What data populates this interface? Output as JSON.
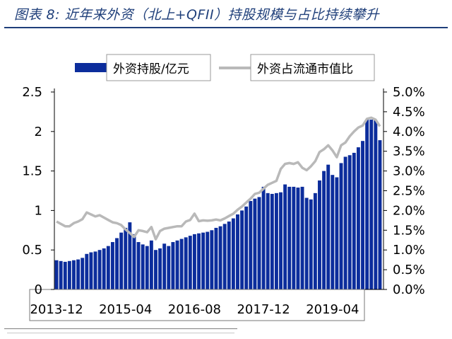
{
  "header": {
    "title": "图表 8:  近年来外资（北上+QFII）持股规模与占比持续攀升"
  },
  "chart_data": {
    "type": "bar+line",
    "legend": {
      "placement": "top",
      "bar_label": "外资持股/亿元",
      "line_label": "外资占流通市值比"
    },
    "colors": {
      "bar": "#0c2d9c",
      "line": "#b9b9b9",
      "title": "#1f3f7a"
    },
    "x_tick_labels": [
      "2013-12",
      "2015-04",
      "2016-08",
      "2017-12",
      "2019-04"
    ],
    "x_tick_indices": [
      0,
      16,
      32,
      48,
      64
    ],
    "y_left": {
      "ylim": [
        0,
        2.5
      ],
      "ticks": [
        "0",
        "0.5",
        "1",
        "1.5",
        "2",
        "2.5"
      ]
    },
    "y_right": {
      "ylim": [
        0,
        5.0
      ],
      "ticks": [
        "0.0%",
        "0.5%",
        "1.0%",
        "1.5%",
        "2.0%",
        "2.5%",
        "3.0%",
        "3.5%",
        "4.0%",
        "4.5%",
        "5.0%"
      ]
    },
    "series": [
      {
        "name": "外资持股/亿元",
        "type": "bar",
        "axis": "left",
        "values": [
          0.37,
          0.36,
          0.35,
          0.36,
          0.37,
          0.38,
          0.4,
          0.45,
          0.47,
          0.48,
          0.5,
          0.52,
          0.55,
          0.6,
          0.65,
          0.72,
          0.78,
          0.85,
          0.7,
          0.6,
          0.57,
          0.55,
          0.62,
          0.5,
          0.52,
          0.58,
          0.55,
          0.6,
          0.62,
          0.64,
          0.66,
          0.68,
          0.7,
          0.71,
          0.72,
          0.73,
          0.75,
          0.78,
          0.8,
          0.83,
          0.86,
          0.9,
          0.95,
          1.0,
          1.05,
          1.12,
          1.15,
          1.17,
          1.3,
          1.22,
          1.21,
          1.22,
          1.23,
          1.33,
          1.3,
          1.3,
          1.29,
          1.3,
          1.16,
          1.14,
          1.22,
          1.38,
          1.5,
          1.58,
          1.45,
          1.42,
          1.6,
          1.68,
          1.7,
          1.73,
          1.8,
          1.88,
          2.15,
          2.15,
          2.14,
          1.89
        ]
      },
      {
        "name": "外资占流通市值比",
        "type": "line",
        "axis": "right",
        "values": [
          1.72,
          1.66,
          1.6,
          1.6,
          1.68,
          1.72,
          1.78,
          1.95,
          1.9,
          1.85,
          1.88,
          1.82,
          1.76,
          1.7,
          1.68,
          1.63,
          1.52,
          1.43,
          1.33,
          1.5,
          1.48,
          1.45,
          1.58,
          1.27,
          1.48,
          1.54,
          1.56,
          1.58,
          1.6,
          1.6,
          1.72,
          1.76,
          1.92,
          1.73,
          1.75,
          1.74,
          1.75,
          1.77,
          1.75,
          1.8,
          1.86,
          1.92,
          2.02,
          2.1,
          2.2,
          2.3,
          2.42,
          2.45,
          2.55,
          2.65,
          2.7,
          2.75,
          3.05,
          3.18,
          3.2,
          3.18,
          3.22,
          3.08,
          3.02,
          3.12,
          3.25,
          3.48,
          3.55,
          3.65,
          3.52,
          3.35,
          3.65,
          3.72,
          3.88,
          4.0,
          4.1,
          4.15,
          4.32,
          4.35,
          4.3,
          4.13
        ]
      }
    ]
  }
}
